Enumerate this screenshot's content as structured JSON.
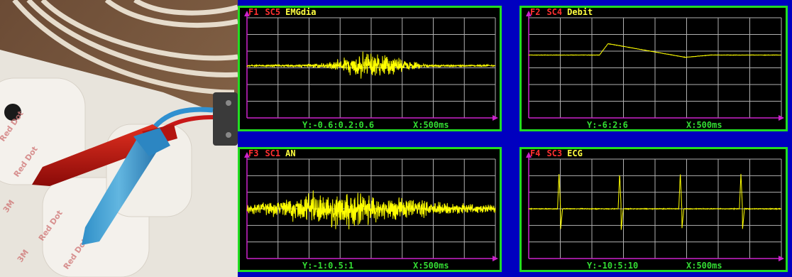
{
  "photo": {
    "label_texts": [
      "3M",
      "Red Dot"
    ]
  },
  "panels": [
    {
      "id": "p1",
      "func": "F1",
      "channel": "SC5",
      "name": "EMGdia",
      "scale_y": "Y:-0.6:0.2:0.6",
      "scale_x": "X:500ms",
      "color": "#ffff00"
    },
    {
      "id": "p2",
      "func": "F2",
      "channel": "SC4",
      "name": "Debit",
      "scale_y": "Y:-6:2:6",
      "scale_x": "X:500ms",
      "color": "#ffff00"
    },
    {
      "id": "p3",
      "func": "F3",
      "channel": "SC1",
      "name": "AN",
      "scale_y": "Y:-1:0.5:1",
      "scale_x": "X:500ms",
      "color": "#ffff00"
    },
    {
      "id": "p4",
      "func": "F4",
      "channel": "SC3",
      "name": "ECG",
      "scale_y": "Y:-10:5:10",
      "scale_x": "X:500ms",
      "color": "#ffff00"
    }
  ],
  "colors": {
    "background": "#0000c0",
    "frame": "#22dd22",
    "grid": "#b0b0b0",
    "axis": "#cc22cc",
    "trace": "#ffff00",
    "label_red": "#ff3030"
  }
}
